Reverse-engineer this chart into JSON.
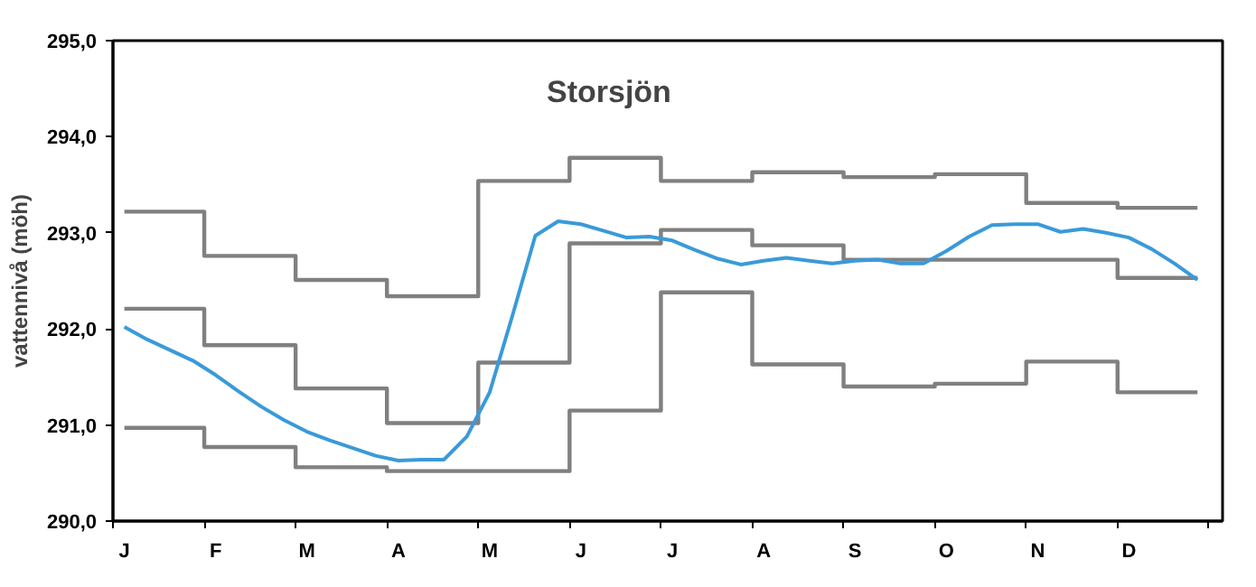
{
  "chart_data": {
    "type": "line",
    "title": "Storsjön",
    "ylabel": "vattennivå (möh)",
    "categories": [
      "J",
      null,
      null,
      null,
      "F",
      null,
      null,
      null,
      "M",
      null,
      null,
      null,
      "A",
      null,
      null,
      null,
      "M",
      null,
      null,
      null,
      "J",
      null,
      null,
      null,
      "J",
      null,
      null,
      null,
      "A",
      null,
      null,
      null,
      "S",
      null,
      null,
      null,
      "O",
      null,
      null,
      null,
      "N",
      null,
      null,
      null,
      "D",
      null,
      null,
      null
    ],
    "ylim": [
      290,
      295
    ],
    "yticks": [
      {
        "value": 290,
        "label": "290,0"
      },
      {
        "value": 291,
        "label": "291,0"
      },
      {
        "value": 292,
        "label": "292,0"
      },
      {
        "value": 293,
        "label": "293,0"
      },
      {
        "value": 294,
        "label": "294,0"
      },
      {
        "value": 295,
        "label": "295,0"
      }
    ],
    "series": [
      {
        "type": "step",
        "color": "#808080",
        "values": [
          293.22,
          293.22,
          293.22,
          293.22,
          292.76,
          292.76,
          292.76,
          292.76,
          292.51,
          292.51,
          292.51,
          292.51,
          292.34,
          292.34,
          292.34,
          292.34,
          293.54,
          293.54,
          293.54,
          293.54,
          293.78,
          293.78,
          293.78,
          293.78,
          293.54,
          293.54,
          293.54,
          293.54,
          293.63,
          293.63,
          293.63,
          293.63,
          293.58,
          293.58,
          293.58,
          293.58,
          293.61,
          293.61,
          293.61,
          293.61,
          293.31,
          293.31,
          293.31,
          293.31,
          293.26,
          293.26,
          293.26,
          293.26
        ]
      },
      {
        "type": "step",
        "color": "#808080",
        "values": [
          292.21,
          292.21,
          292.21,
          292.21,
          291.83,
          291.83,
          291.83,
          291.83,
          291.38,
          291.38,
          291.38,
          291.38,
          291.02,
          291.02,
          291.02,
          291.02,
          291.65,
          291.65,
          291.65,
          291.65,
          292.89,
          292.89,
          292.89,
          292.89,
          293.03,
          293.03,
          293.03,
          293.03,
          292.87,
          292.87,
          292.87,
          292.87,
          292.72,
          292.72,
          292.72,
          292.72,
          292.72,
          292.72,
          292.72,
          292.72,
          292.72,
          292.72,
          292.72,
          292.72,
          292.53,
          292.53,
          292.53,
          292.53
        ]
      },
      {
        "type": "step",
        "color": "#808080",
        "values": [
          290.97,
          290.97,
          290.97,
          290.97,
          290.77,
          290.77,
          290.77,
          290.77,
          290.56,
          290.56,
          290.56,
          290.56,
          290.52,
          290.52,
          290.52,
          290.52,
          290.52,
          290.52,
          290.52,
          290.52,
          291.15,
          291.15,
          291.15,
          291.15,
          292.38,
          292.38,
          292.38,
          292.38,
          291.63,
          291.63,
          291.63,
          291.63,
          291.4,
          291.4,
          291.4,
          291.4,
          291.43,
          291.43,
          291.43,
          291.43,
          291.66,
          291.66,
          291.66,
          291.66,
          291.34,
          291.34,
          291.34,
          291.34
        ]
      },
      {
        "color": "#3a9ad9",
        "values": [
          292.02,
          291.89,
          291.78,
          291.67,
          291.52,
          291.35,
          291.19,
          291.05,
          290.93,
          290.84,
          290.76,
          290.68,
          290.63,
          290.64,
          290.64,
          290.88,
          291.34,
          292.14,
          292.97,
          293.12,
          293.09,
          293.02,
          292.95,
          292.96,
          292.92,
          292.82,
          292.73,
          292.67,
          292.71,
          292.74,
          292.71,
          292.68,
          292.71,
          292.72,
          292.68,
          292.68,
          292.81,
          292.96,
          293.08,
          293.09,
          293.09,
          293.01,
          293.04,
          293.0,
          292.95,
          292.83,
          292.68,
          292.51
        ]
      }
    ]
  }
}
